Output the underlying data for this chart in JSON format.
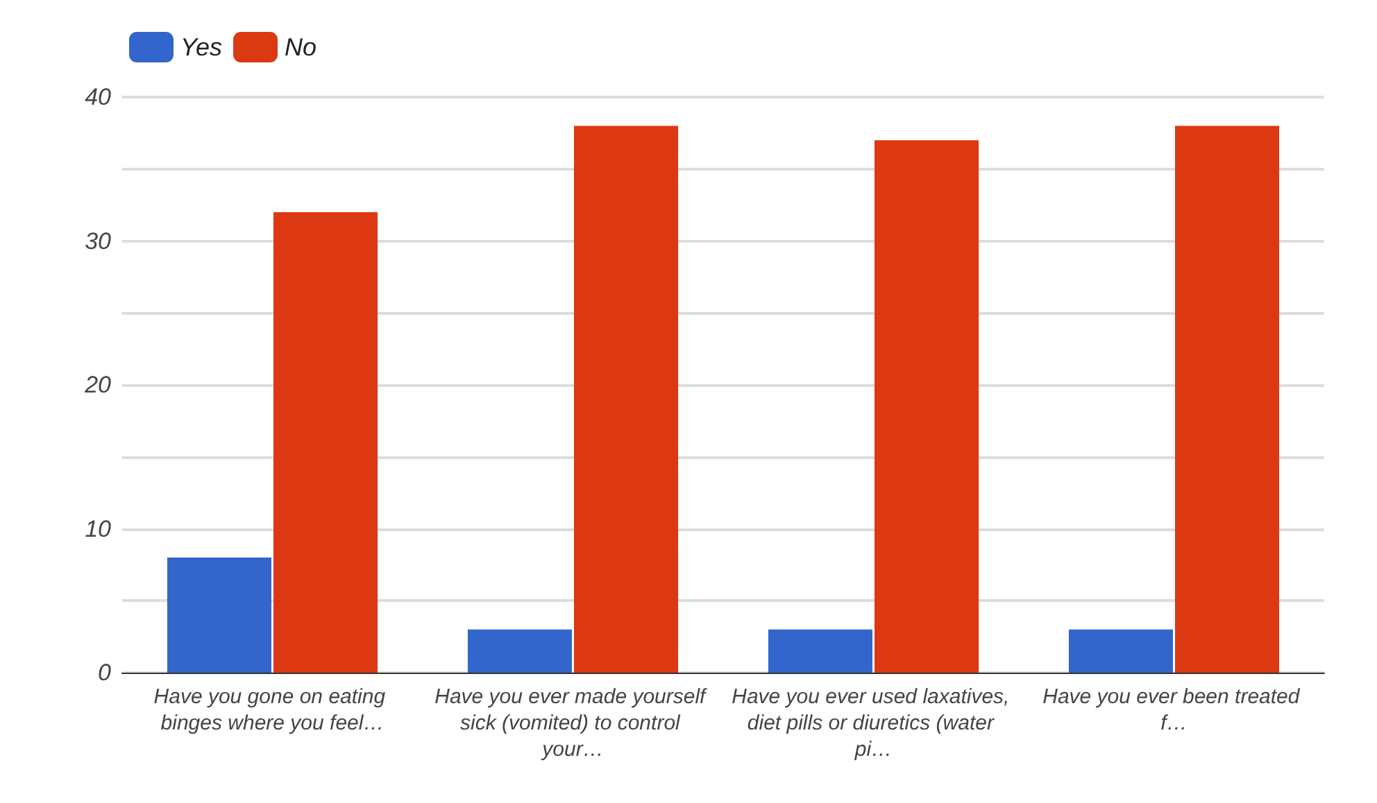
{
  "chart_data": {
    "type": "bar",
    "categories": [
      "Have you gone on eating binges where you feel…",
      "Have you ever made yourself sick (vomited) to control your…",
      "Have you ever used laxatives, diet pills or diuretics (water pi…",
      "Have you ever been treated f…"
    ],
    "series": [
      {
        "name": "Yes",
        "color": "#3366cc",
        "values": [
          8,
          3,
          3,
          3
        ]
      },
      {
        "name": "No",
        "color": "#dc3912",
        "values": [
          32,
          38,
          37,
          38
        ]
      }
    ],
    "ylim": [
      0,
      40
    ],
    "yticks": [
      0,
      {
        "value": 5,
        "label": null
      },
      10,
      {
        "value": 15,
        "label": null
      },
      20,
      {
        "value": 25,
        "label": null
      },
      30,
      {
        "value": 35,
        "label": null
      },
      40
    ],
    "grid": "y",
    "legend": "top left"
  }
}
